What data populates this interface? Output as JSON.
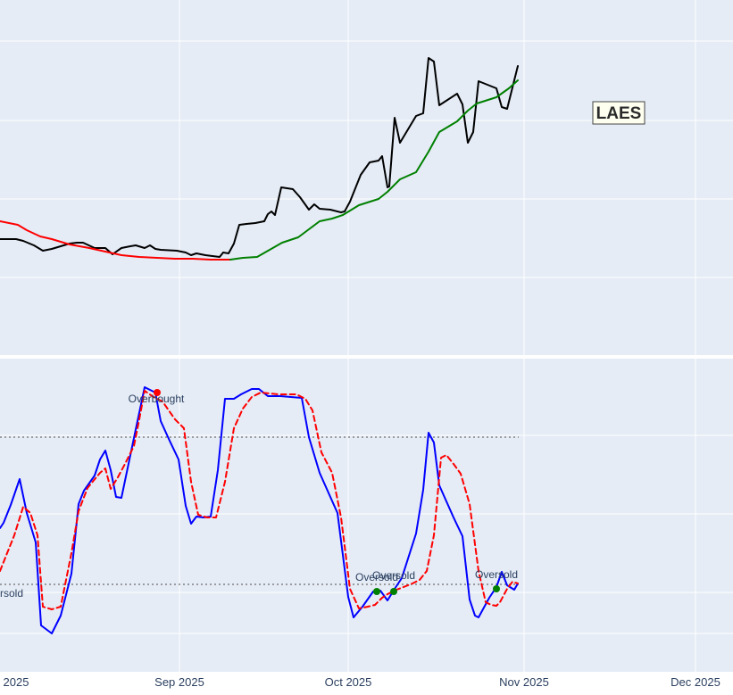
{
  "ticker_label": "LAES",
  "colors": {
    "plot_bg": "#e5ecf6",
    "grid": "#ffffff",
    "price": "#000000",
    "ma_red": "#ff0000",
    "ma_green": "#008000",
    "stoch_k": "#0000ff",
    "stoch_d": "#ff0000",
    "threshold": "#808080",
    "overbought_marker": "#ff0000",
    "oversold_marker": "#008000",
    "label_bg": "#fffff0"
  },
  "x_axis": {
    "tick_labels": [
      "2025",
      "Sep 2025",
      "Oct 2025",
      "Nov 2025",
      "Dec 2025"
    ]
  },
  "chart_data": [
    {
      "type": "line",
      "panel": "price",
      "series": [
        {
          "key": "price",
          "x": [
            0,
            6,
            18,
            26,
            38,
            48,
            58,
            68,
            78,
            86,
            93,
            106,
            118,
            126,
            136,
            146,
            152,
            162,
            168,
            174,
            180,
            198,
            208,
            214,
            220,
            230,
            238,
            246,
            250,
            256,
            262,
            268,
            276,
            286,
            296,
            300,
            304,
            308,
            315,
            328,
            336,
            346,
            352,
            358,
            370,
            382,
            386,
            392,
            404,
            414,
            424,
            428,
            434,
            436,
            442,
            448,
            466,
            474,
            480,
            486,
            492,
            512,
            518,
            524,
            530,
            536,
            556,
            562,
            568,
            580
          ],
          "y": [
            268,
            268,
            268,
            270,
            275,
            281,
            279,
            276,
            273,
            272,
            272,
            278,
            278,
            285,
            278,
            276,
            275,
            278,
            275,
            279,
            280,
            281,
            283,
            286,
            284,
            286,
            287,
            288,
            283,
            284,
            273,
            252,
            251,
            250,
            248,
            240,
            237,
            241,
            210,
            212,
            221,
            235,
            229,
            234,
            235,
            238,
            237,
            226,
            196,
            182,
            180,
            175,
            210,
            209,
            132,
            160,
            130,
            127,
            65,
            69,
            118,
            105,
            117,
            160,
            148,
            91,
            99,
            120,
            122,
            74
          ]
        },
        {
          "key": "ma_red",
          "x": [
            0,
            20,
            30,
            45,
            58,
            78,
            100,
            118,
            136,
            156,
            176,
            196,
            216,
            236,
            258
          ],
          "y": [
            248,
            252,
            258,
            265,
            268,
            274,
            278,
            282,
            286,
            288,
            289,
            290,
            290,
            291,
            291
          ]
        },
        {
          "key": "ma_green",
          "x": [
            258,
            272,
            288,
            302,
            316,
            334,
            346,
            358,
            372,
            384,
            402,
            424,
            434,
            448,
            466,
            480,
            492,
            512,
            524,
            534,
            556,
            570,
            580
          ],
          "y": [
            291,
            289,
            288,
            280,
            272,
            266,
            257,
            248,
            245,
            241,
            230,
            223,
            215,
            201,
            193,
            170,
            148,
            136,
            124,
            116,
            109,
            99,
            90
          ]
        }
      ]
    },
    {
      "type": "line",
      "panel": "stochastic",
      "series": [
        {
          "key": "stoch_k",
          "x": [
            0,
            4,
            12,
            22,
            30,
            40,
            46,
            58,
            68,
            80,
            88,
            94,
            106,
            112,
            118,
            124,
            130,
            136,
            150,
            162,
            170,
            174,
            180,
            190,
            200,
            208,
            214,
            220,
            228,
            236,
            244,
            252,
            262,
            270,
            282,
            290,
            300,
            306,
            314,
            326,
            338,
            346,
            358,
            378,
            390,
            396,
            406,
            418,
            426,
            434,
            442,
            450,
            466,
            474,
            480,
            486,
            492,
            508,
            518,
            526,
            532,
            536,
            548,
            556,
            562,
            568,
            576,
            580
          ],
          "y": [
            592,
            586,
            566,
            537,
            575,
            608,
            701,
            710,
            690,
            643,
            565,
            550,
            533,
            515,
            505,
            527,
            557,
            558,
            491,
            434,
            438,
            440,
            472,
            494,
            515,
            567,
            587,
            579,
            580,
            579,
            527,
            447,
            447,
            442,
            436,
            436,
            444,
            444,
            444,
            445,
            446,
            490,
            530,
            575,
            669,
            692,
            680,
            663,
            662,
            673,
            660,
            648,
            598,
            549,
            485,
            496,
            544,
            580,
            601,
            672,
            690,
            692,
            670,
            658,
            641,
            656,
            661,
            654
          ]
        },
        {
          "key": "stoch_d",
          "x": [
            0,
            6,
            16,
            26,
            34,
            42,
            48,
            58,
            68,
            80,
            88,
            98,
            112,
            118,
            124,
            132,
            140,
            150,
            156,
            162,
            172,
            182,
            196,
            206,
            214,
            222,
            232,
            242,
            252,
            262,
            272,
            282,
            292,
            302,
            312,
            322,
            332,
            342,
            350,
            360,
            372,
            382,
            392,
            402,
            412,
            420,
            428,
            434,
            444,
            452,
            462,
            470,
            478,
            486,
            494,
            500,
            508,
            516,
            526,
            536,
            544,
            550,
            556,
            560,
            568,
            574,
            580
          ],
          "y": [
            640,
            625,
            600,
            568,
            575,
            600,
            680,
            683,
            680,
            620,
            573,
            547,
            530,
            525,
            548,
            535,
            520,
            500,
            470,
            438,
            445,
            450,
            470,
            480,
            540,
            577,
            580,
            580,
            540,
            480,
            458,
            445,
            440,
            441,
            442,
            442,
            442,
            447,
            460,
            507,
            530,
            580,
            660,
            682,
            680,
            678,
            670,
            666,
            661,
            658,
            654,
            650,
            640,
            600,
            513,
            510,
            520,
            531,
            565,
            640,
            675,
            678,
            679,
            675,
            660,
            652,
            654
          ]
        }
      ]
    }
  ],
  "levels": {
    "upper_threshold_y": 490,
    "lower_threshold_y": 655
  },
  "annotations": [
    {
      "text": "Overbought",
      "kind": "overbought",
      "marker_x": 176,
      "marker_y": 440,
      "label_x": 175,
      "label_y": 451
    },
    {
      "text": "Oversold",
      "kind": "oversold",
      "marker_x": null,
      "marker_y": null,
      "label_x": 2,
      "label_y": 669
    },
    {
      "text": "Oversold",
      "kind": "oversold",
      "marker_x": 422,
      "marker_y": 663,
      "label_x": 422,
      "label_y": 651
    },
    {
      "text": "Oversold",
      "kind": "oversold",
      "marker_x": 441,
      "marker_y": 663,
      "label_x": 441,
      "label_y": 649
    },
    {
      "text": "Oversold",
      "kind": "oversold",
      "marker_x": 556,
      "marker_y": 660,
      "label_x": 556,
      "label_y": 648
    }
  ]
}
